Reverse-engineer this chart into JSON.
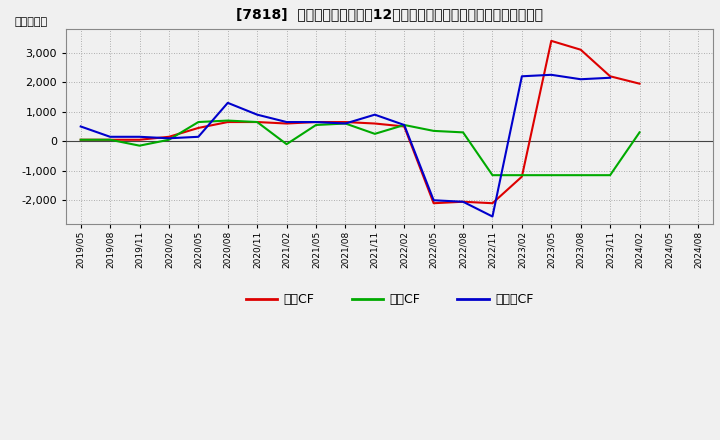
{
  "title": "[7818]  キャッシュフローの12か月移動合計の対前年同期増減額の推移",
  "ylabel": "（百万円）",
  "xlabel_dates": [
    "2019/05",
    "2019/08",
    "2019/11",
    "2020/02",
    "2020/05",
    "2020/08",
    "2020/11",
    "2021/02",
    "2021/05",
    "2021/08",
    "2021/11",
    "2022/02",
    "2022/05",
    "2022/08",
    "2022/11",
    "2023/02",
    "2023/05",
    "2023/08",
    "2023/11",
    "2024/02",
    "2024/05",
    "2024/08"
  ],
  "series": {
    "営業CF": {
      "color": "#dd0000",
      "values": [
        50,
        50,
        50,
        150,
        450,
        650,
        650,
        600,
        650,
        650,
        600,
        500,
        -2100,
        -2050,
        -2100,
        -1200,
        3400,
        3100,
        2200,
        1950,
        null,
        null
      ]
    },
    "投資CF": {
      "color": "#00aa00",
      "values": [
        50,
        50,
        -150,
        50,
        650,
        700,
        650,
        -100,
        550,
        600,
        250,
        550,
        350,
        300,
        -1150,
        -1150,
        -1150,
        -1150,
        -1150,
        300,
        null,
        null
      ]
    },
    "フリーCF": {
      "color": "#0000cc",
      "values": [
        500,
        150,
        150,
        100,
        150,
        1300,
        900,
        650,
        650,
        600,
        900,
        550,
        -2000,
        -2050,
        -2550,
        2200,
        2250,
        2100,
        2150,
        null,
        null,
        null
      ]
    }
  },
  "ylim": [
    -2800,
    3800
  ],
  "yticks": [
    -2000,
    -1000,
    0,
    1000,
    2000,
    3000
  ],
  "background_color": "#f0f0f0",
  "plot_bg_color": "#f0f0f0",
  "grid_color": "#999999",
  "legend_labels": [
    "営業CF",
    "投資CF",
    "フリーCF"
  ],
  "legend_colors": [
    "#dd0000",
    "#00aa00",
    "#0000cc"
  ]
}
